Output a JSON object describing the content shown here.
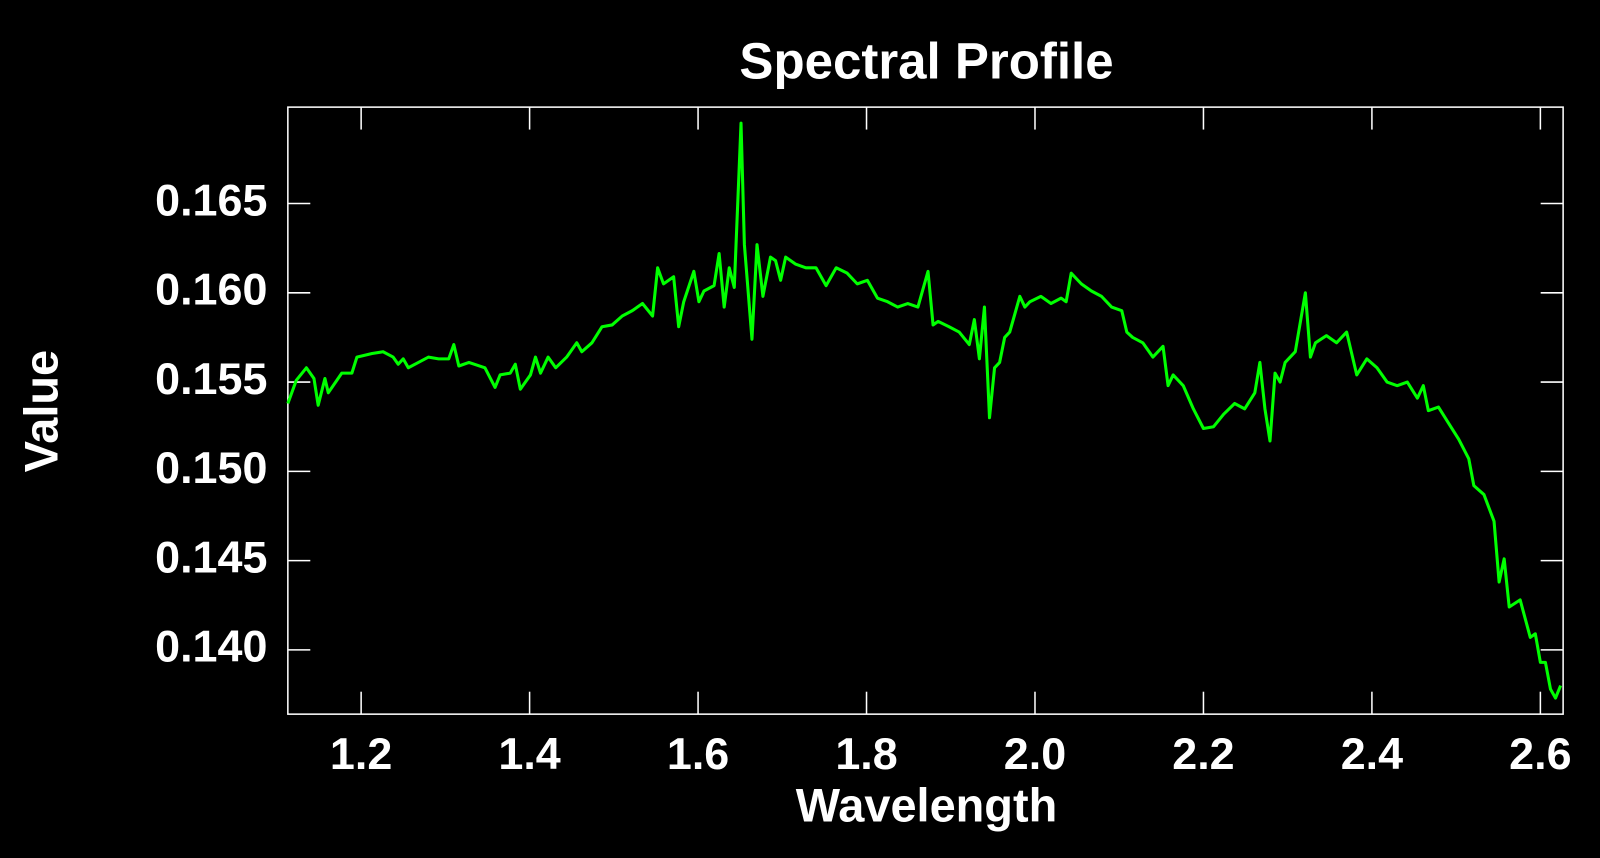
{
  "chart_data": {
    "type": "line",
    "title": "Spectral Profile",
    "x_label": "Wavelength",
    "y_label": "Value",
    "xlim": [
      1.113,
      2.627
    ],
    "ylim": [
      0.1364,
      0.1704
    ],
    "xticks": [
      1.2,
      1.4,
      1.6,
      1.8,
      {
        "value": 2,
        "label": "2.0"
      },
      2.2,
      2.4,
      2.6
    ],
    "yticks": [
      {
        "value": 0.14,
        "label": "0.140"
      },
      0.145,
      {
        "value": 0.15,
        "label": "0.150"
      },
      0.155,
      {
        "value": 0.16,
        "label": "0.160"
      },
      0.165
    ],
    "series": [
      {
        "color": "#00ff00",
        "x": [
          1.113,
          1.123,
          1.135,
          1.144,
          1.149,
          1.157,
          1.161,
          1.177,
          1.189,
          1.195,
          1.213,
          1.226,
          1.238,
          1.244,
          1.25,
          1.256,
          1.268,
          1.28,
          1.292,
          1.304,
          1.31,
          1.316,
          1.328,
          1.347,
          1.359,
          1.365,
          1.377,
          1.383,
          1.389,
          1.401,
          1.407,
          1.413,
          1.422,
          1.431,
          1.444,
          1.456,
          1.462,
          1.474,
          1.486,
          1.498,
          1.51,
          1.522,
          1.534,
          1.546,
          1.552,
          1.559,
          1.571,
          1.577,
          1.583,
          1.595,
          1.601,
          1.607,
          1.619,
          1.625,
          1.631,
          1.637,
          1.643,
          1.651,
          1.655,
          1.664,
          1.67,
          1.677,
          1.686,
          1.692,
          1.698,
          1.704,
          1.716,
          1.728,
          1.74,
          1.752,
          1.764,
          1.777,
          1.789,
          1.801,
          1.813,
          1.825,
          1.837,
          1.849,
          1.861,
          1.873,
          1.879,
          1.885,
          1.898,
          1.91,
          1.922,
          1.928,
          1.934,
          1.94,
          1.946,
          1.952,
          1.958,
          1.964,
          1.97,
          1.982,
          1.988,
          1.994,
          2.007,
          2.019,
          2.031,
          2.037,
          2.043,
          2.055,
          2.067,
          2.079,
          2.091,
          2.103,
          2.109,
          2.116,
          2.128,
          2.14,
          2.152,
          2.158,
          2.164,
          2.176,
          2.188,
          2.2,
          2.212,
          2.224,
          2.237,
          2.249,
          2.261,
          2.267,
          2.273,
          2.279,
          2.285,
          2.291,
          2.297,
          2.309,
          2.321,
          2.327,
          2.333,
          2.346,
          2.358,
          2.37,
          2.382,
          2.394,
          2.406,
          2.418,
          2.43,
          2.442,
          2.454,
          2.461,
          2.467,
          2.479,
          2.491,
          2.503,
          2.515,
          2.521,
          2.533,
          2.545,
          2.551,
          2.557,
          2.563,
          2.576,
          2.588,
          2.594,
          2.6,
          2.606,
          2.612,
          2.618,
          2.624
        ],
        "values": [
          0.1538,
          0.1551,
          0.1558,
          0.1552,
          0.1537,
          0.1552,
          0.1544,
          0.1555,
          0.1555,
          0.1564,
          0.1566,
          0.1567,
          0.1564,
          0.156,
          0.1563,
          0.1558,
          0.1561,
          0.1564,
          0.1563,
          0.1563,
          0.1571,
          0.1559,
          0.1561,
          0.1558,
          0.1547,
          0.1554,
          0.1555,
          0.156,
          0.1546,
          0.1554,
          0.1564,
          0.1555,
          0.1564,
          0.1558,
          0.1564,
          0.1572,
          0.1567,
          0.1572,
          0.1581,
          0.1582,
          0.1587,
          0.159,
          0.1594,
          0.1587,
          0.1614,
          0.1605,
          0.1609,
          0.1581,
          0.1595,
          0.1612,
          0.1595,
          0.1601,
          0.1604,
          0.1622,
          0.1592,
          0.1614,
          0.1603,
          0.1695,
          0.1627,
          0.1574,
          0.1627,
          0.1598,
          0.162,
          0.1618,
          0.1607,
          0.162,
          0.1616,
          0.1614,
          0.1614,
          0.1604,
          0.1614,
          0.1611,
          0.1605,
          0.1607,
          0.1597,
          0.1595,
          0.1592,
          0.1594,
          0.1592,
          0.1612,
          0.1582,
          0.1584,
          0.1581,
          0.1578,
          0.1571,
          0.1585,
          0.1563,
          0.1592,
          0.153,
          0.1558,
          0.1561,
          0.1575,
          0.1578,
          0.1598,
          0.1592,
          0.1595,
          0.1598,
          0.1594,
          0.1597,
          0.1595,
          0.1611,
          0.1605,
          0.1601,
          0.1598,
          0.1592,
          0.159,
          0.1578,
          0.1575,
          0.1572,
          0.1564,
          0.157,
          0.1548,
          0.1554,
          0.1548,
          0.1535,
          0.1524,
          0.1525,
          0.1532,
          0.1538,
          0.1535,
          0.1544,
          0.1561,
          0.1535,
          0.1517,
          0.1555,
          0.155,
          0.1561,
          0.1567,
          0.16,
          0.1564,
          0.1572,
          0.1576,
          0.1572,
          0.1578,
          0.1554,
          0.1563,
          0.1558,
          0.155,
          0.1548,
          0.155,
          0.1541,
          0.1548,
          0.1534,
          0.1536,
          0.1527,
          0.1518,
          0.1507,
          0.1492,
          0.1487,
          0.1472,
          0.1438,
          0.1451,
          0.1424,
          0.1428,
          0.1407,
          0.1409,
          0.1393,
          0.1393,
          0.1378,
          0.1373,
          0.138
        ]
      }
    ]
  }
}
